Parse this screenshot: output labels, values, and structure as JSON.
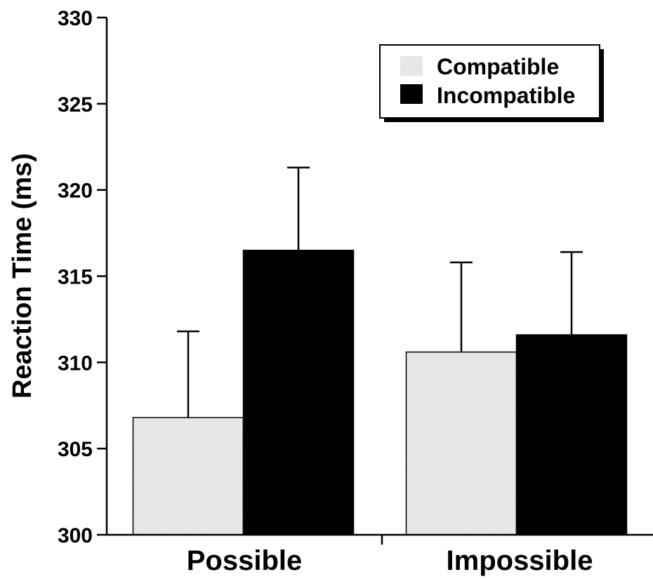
{
  "chart_data": {
    "type": "bar",
    "title": "",
    "xlabel": "",
    "ylabel": "Reaction Time (ms)",
    "ylim": [
      300,
      330
    ],
    "yticks": [
      300,
      305,
      310,
      315,
      320,
      325,
      330
    ],
    "categories": [
      "Possible",
      "Impossible"
    ],
    "grid": false,
    "legend_position": "top-right",
    "series": [
      {
        "name": "Compatible",
        "color": "#e3e3e3",
        "pattern": "light-hatched-gray",
        "values": [
          306.8,
          310.6
        ],
        "errors": [
          5.0,
          5.2
        ]
      },
      {
        "name": "Incompatible",
        "color": "#000000",
        "values": [
          316.5,
          311.6
        ],
        "errors": [
          4.8,
          4.8
        ]
      }
    ]
  }
}
